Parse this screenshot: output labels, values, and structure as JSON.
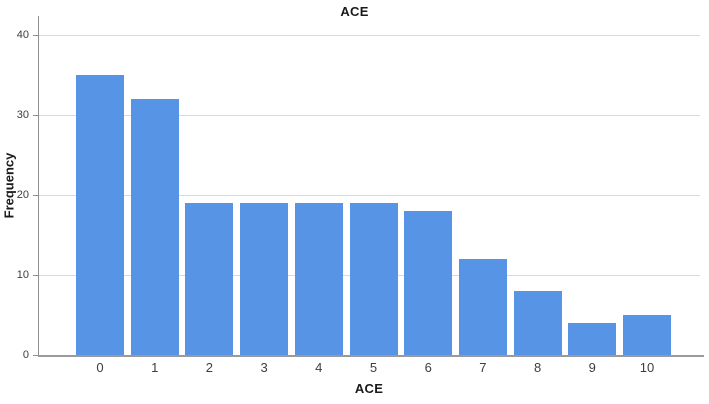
{
  "chart_data": {
    "type": "bar",
    "title": "ACE",
    "xlabel": "ACE",
    "ylabel": "Frequency",
    "categories": [
      "0",
      "1",
      "2",
      "3",
      "4",
      "5",
      "6",
      "7",
      "8",
      "9",
      "10"
    ],
    "values": [
      35,
      32,
      19,
      19,
      19,
      19,
      18,
      12,
      8,
      4,
      5
    ],
    "ylim": [
      0,
      42.4
    ],
    "yticks": [
      0,
      10,
      20,
      30,
      40
    ],
    "grid": true,
    "legend": "none",
    "bar_color": "#5794E5",
    "gridline_color": "#d9d9d9",
    "axis_color": "#8f8f8f",
    "tick_label_color": "#3d3d3d",
    "title_color": "#1a1a1a",
    "background_color": "#ffffff"
  }
}
